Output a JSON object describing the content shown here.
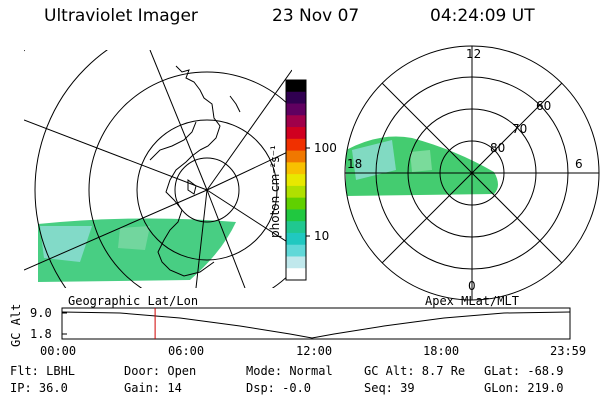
{
  "header": {
    "title": "Ultraviolet Imager",
    "date": "23 Nov 07",
    "time": "04:24:09 UT"
  },
  "colorbar": {
    "unit_label": "photon cm⁻²s⁻¹",
    "tick_labels": [
      "100",
      "10"
    ],
    "colors": [
      "#000000",
      "#300050",
      "#600060",
      "#a0004a",
      "#d00020",
      "#f03000",
      "#f07800",
      "#f8c000",
      "#e8e800",
      "#b0e000",
      "#60d000",
      "#20c840",
      "#20c890",
      "#20c8c0",
      "#60d8d8",
      "#c0e8ec",
      "#ffffff"
    ]
  },
  "geo_panel": {
    "label": "Geographic Lat/Lon",
    "aurora_color": "#3ecb7c"
  },
  "polar_panel": {
    "label": "Apex MLat/MLT",
    "mlt_labels": {
      "top": "12",
      "right": "6",
      "left": "18",
      "bottom": "0"
    },
    "lat_labels": [
      "60",
      "70",
      "80"
    ],
    "aurora_color": "#44cc70"
  },
  "altitude_plot": {
    "axis_label": "GC Alt",
    "y_ticks": [
      "9.0",
      "1.8"
    ],
    "x_ticks": [
      "00:00",
      "06:00",
      "12:00",
      "18:00",
      "23:59"
    ],
    "marker_time_hours": 4.4,
    "marker_color": "#d00000"
  },
  "footer": {
    "flt": "Flt: LBHL",
    "ip": "IP: 36.0",
    "door": "Door: Open",
    "gain": "Gain: 14",
    "mode": "Mode: Normal",
    "dsp": "Dsp:   -0.0",
    "gcalt": "GC Alt: 8.7 Re",
    "seq": "Seq: 39",
    "glat": "GLat: -68.9",
    "glon": "GLon: 219.0"
  }
}
